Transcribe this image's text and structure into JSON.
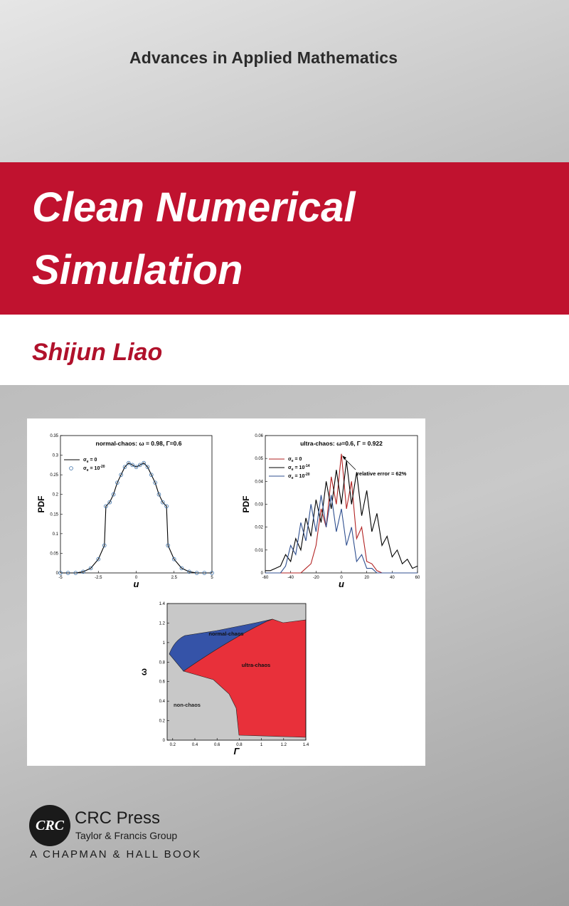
{
  "series_label": "Advances in Applied Mathematics",
  "title": [
    "Clean Numerical",
    "Simulation"
  ],
  "author": "Shijun Liao",
  "figures": [
    {
      "type": "line",
      "title": "normal-chaos:  ω = 0.98,  Γ=0.6",
      "xlabel": "u",
      "ylabel": "PDF",
      "xlim": [
        -5,
        5
      ],
      "ylim": [
        0,
        0.35
      ],
      "xticks": [
        -5,
        -2.5,
        0,
        2.5,
        5
      ],
      "yticks": [
        0,
        0.05,
        0.1,
        0.15,
        0.2,
        0.25,
        0.3,
        0.35
      ],
      "x": [
        -5,
        -4.5,
        -4,
        -3.5,
        -3,
        -2.5,
        -2.1,
        -2.0,
        -1.75,
        -1.5,
        -1.25,
        -1,
        -0.75,
        -0.5,
        -0.25,
        0,
        0.25,
        0.5,
        0.75,
        1,
        1.25,
        1.5,
        1.75,
        2.0,
        2.1,
        2.5,
        3,
        3.5,
        4,
        4.5,
        5
      ],
      "series": [
        {
          "name": [
            "σ",
            "e",
            " = 0"
          ],
          "color": "#000000",
          "marker": "line",
          "values": [
            0,
            0,
            0,
            0.003,
            0.012,
            0.035,
            0.07,
            0.17,
            0.18,
            0.2,
            0.23,
            0.25,
            0.27,
            0.28,
            0.275,
            0.27,
            0.275,
            0.28,
            0.27,
            0.25,
            0.23,
            0.2,
            0.18,
            0.17,
            0.07,
            0.035,
            0.012,
            0.003,
            0,
            0,
            0
          ]
        },
        {
          "name": [
            "σ",
            "e",
            " = 10",
            "-20"
          ],
          "color": "#3a6fa8",
          "marker": "circle",
          "values": [
            0,
            0,
            0,
            0.003,
            0.012,
            0.035,
            0.07,
            0.17,
            0.18,
            0.2,
            0.23,
            0.25,
            0.27,
            0.28,
            0.275,
            0.27,
            0.275,
            0.28,
            0.27,
            0.25,
            0.23,
            0.2,
            0.18,
            0.17,
            0.07,
            0.035,
            0.012,
            0.003,
            0,
            0,
            0
          ]
        }
      ]
    },
    {
      "type": "line",
      "title": "ultra-chaos:  ω=0.6, Γ = 0.922",
      "xlabel": "u",
      "ylabel": "PDF",
      "annotation": "relative error = 62%",
      "xlim": [
        -60,
        60
      ],
      "ylim": [
        0,
        0.06
      ],
      "xticks": [
        -60,
        -40,
        -20,
        0,
        20,
        40,
        60
      ],
      "yticks": [
        0,
        0.01,
        0.02,
        0.03,
        0.04,
        0.05,
        0.06
      ],
      "x": [
        -60,
        -56,
        -52,
        -48,
        -44,
        -40,
        -36,
        -32,
        -28,
        -24,
        -20,
        -16,
        -12,
        -8,
        -4,
        0,
        4,
        8,
        12,
        16,
        20,
        24,
        28,
        32,
        36,
        40,
        44,
        48,
        52,
        56,
        60
      ],
      "series": [
        {
          "name": [
            "σ",
            "e",
            " = 0"
          ],
          "color": "#b22222",
          "marker": "line",
          "values": [
            0,
            0,
            0,
            0,
            0,
            0,
            0,
            0,
            0.002,
            0.004,
            0.012,
            0.028,
            0.02,
            0.042,
            0.03,
            0.052,
            0.028,
            0.04,
            0.015,
            0.02,
            0.005,
            0.004,
            0.001,
            0,
            0,
            0,
            0,
            0,
            0,
            0,
            0
          ]
        },
        {
          "name": [
            "σ",
            "e",
            " = 10",
            "-14"
          ],
          "color": "#000000",
          "marker": "line",
          "values": [
            0.001,
            0.001,
            0.002,
            0.003,
            0.008,
            0.005,
            0.015,
            0.01,
            0.024,
            0.016,
            0.032,
            0.022,
            0.04,
            0.028,
            0.045,
            0.03,
            0.049,
            0.03,
            0.044,
            0.025,
            0.036,
            0.018,
            0.026,
            0.012,
            0.016,
            0.007,
            0.01,
            0.004,
            0.006,
            0.002,
            0.003
          ]
        },
        {
          "name": [
            "σ",
            "e",
            " = 10",
            "-20"
          ],
          "color": "#2f4f8f",
          "marker": "line",
          "values": [
            0,
            0,
            0,
            0,
            0.003,
            0.012,
            0.008,
            0.022,
            0.014,
            0.03,
            0.018,
            0.034,
            0.02,
            0.034,
            0.018,
            0.028,
            0.012,
            0.02,
            0.005,
            0.008,
            0.002,
            0.002,
            0,
            0,
            0,
            0,
            0,
            0,
            0,
            0,
            0
          ]
        }
      ]
    },
    {
      "type": "region",
      "xlabel": "Γ",
      "ylabel": "ω",
      "xlim": [
        0.15,
        1.4
      ],
      "ylim": [
        0,
        1.4
      ],
      "xticks": [
        0.2,
        0.4,
        0.6,
        0.8,
        1,
        1.2,
        1.4
      ],
      "yticks": [
        0,
        0.2,
        0.4,
        0.6,
        0.8,
        1,
        1.2,
        1.4
      ],
      "regions": [
        "normal-chaos",
        "ultra-chaos",
        "non-chaos"
      ]
    }
  ],
  "publisher": {
    "logo": "CRC",
    "name": "CRC Press",
    "group": "Taylor & Francis Group",
    "imprint": "A CHAPMAN & HALL BOOK"
  }
}
